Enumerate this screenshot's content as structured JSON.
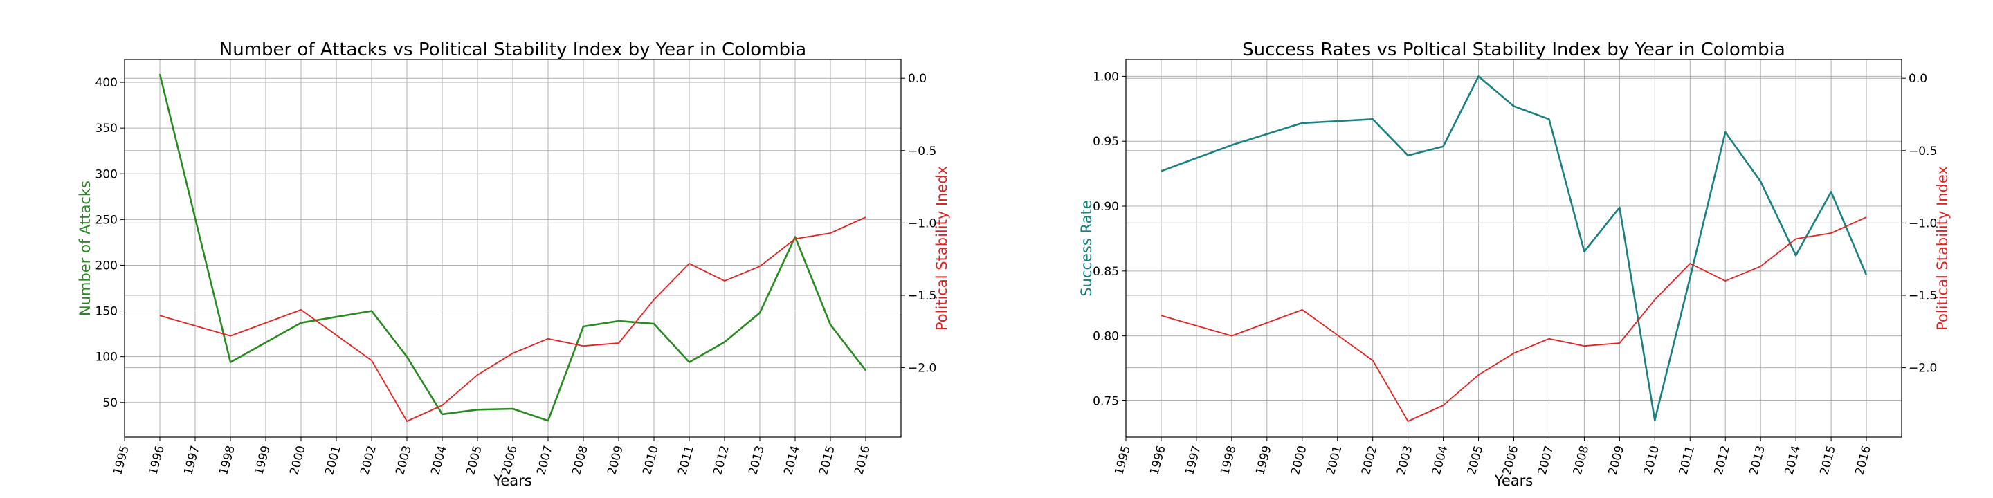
{
  "chart_data": [
    {
      "type": "line",
      "title": "Number of Attacks vs Political Stability Index by Year in Colombia",
      "xlabel": "Years",
      "ylabel": "Number of Attacks",
      "y2label": "Political Stability Inedx",
      "x_ticks": [
        "1995",
        "1996",
        "1997",
        "1998",
        "1999",
        "2000",
        "2001",
        "2002",
        "2003",
        "2004",
        "2005",
        "2006",
        "2007",
        "2008",
        "2009",
        "2010",
        "2011",
        "2012",
        "2013",
        "2014",
        "2015",
        "2016"
      ],
      "xlim": [
        1995,
        2017
      ],
      "ylim": [
        12,
        425
      ],
      "y_ticks": [
        50,
        100,
        150,
        200,
        250,
        300,
        350,
        400
      ],
      "y2lim": [
        -2.48,
        0.13
      ],
      "y2_ticks": [
        "0.0",
        "−0.5",
        "−1.0",
        "−1.5",
        "−2.0"
      ],
      "y2_tick_values": [
        0.0,
        -0.5,
        -1.0,
        -1.5,
        -2.0
      ],
      "grid": true,
      "series": [
        {
          "axis": "left",
          "color": "#2a8a22",
          "x": [
            1996,
            1998,
            2000,
            2002,
            2003,
            2004,
            2005,
            2006,
            2007,
            2008,
            2009,
            2010,
            2011,
            2012,
            2013,
            2014,
            2015,
            2016
          ],
          "values": [
            409,
            94,
            137,
            150,
            100,
            37,
            42,
            43,
            30,
            133,
            139,
            136,
            94,
            116,
            148,
            231,
            135,
            85
          ]
        },
        {
          "axis": "right",
          "color": "#e82020",
          "x": [
            1996,
            1998,
            2000,
            2002,
            2003,
            2004,
            2005,
            2006,
            2007,
            2008,
            2009,
            2010,
            2011,
            2012,
            2013,
            2014,
            2015,
            2016
          ],
          "values": [
            -1.64,
            -1.78,
            -1.6,
            -1.95,
            -2.37,
            -2.26,
            -2.05,
            -1.9,
            -1.8,
            -1.85,
            -1.83,
            -1.53,
            -1.28,
            -1.4,
            -1.3,
            -1.11,
            -1.07,
            -0.96
          ]
        }
      ]
    },
    {
      "type": "line",
      "title": "Success Rates vs Poltical Stability Index by Year in Colombia",
      "xlabel": "Years",
      "ylabel": "Success Rate",
      "y2label": "Political Stability Index",
      "x_ticks": [
        "1995",
        "1996",
        "1997",
        "1998",
        "1999",
        "2000",
        "2001",
        "2002",
        "2003",
        "2004",
        "2005",
        "2006",
        "2007",
        "2008",
        "2009",
        "2010",
        "2011",
        "2012",
        "2013",
        "2014",
        "2015",
        "2016"
      ],
      "xlim": [
        1995,
        2017
      ],
      "ylim": [
        0.722,
        1.013
      ],
      "y_ticks": [
        "0.75",
        "0.80",
        "0.85",
        "0.90",
        "0.95",
        "1.00"
      ],
      "y_tick_values": [
        0.75,
        0.8,
        0.85,
        0.9,
        0.95,
        1.0
      ],
      "y2lim": [
        -2.48,
        0.13
      ],
      "y2_ticks": [
        "0.0",
        "−0.5",
        "−1.0",
        "−1.5",
        "−2.0"
      ],
      "y2_tick_values": [
        0.0,
        -0.5,
        -1.0,
        -1.5,
        -2.0
      ],
      "grid": true,
      "series": [
        {
          "axis": "left",
          "color": "#1a8080",
          "x": [
            1996,
            1998,
            2000,
            2002,
            2003,
            2004,
            2005,
            2006,
            2007,
            2008,
            2009,
            2010,
            2011,
            2012,
            2013,
            2014,
            2015,
            2016
          ],
          "values": [
            0.927,
            0.947,
            0.964,
            0.967,
            0.939,
            0.946,
            1.0,
            0.977,
            0.967,
            0.865,
            0.899,
            0.735,
            0.845,
            0.957,
            0.919,
            0.862,
            0.911,
            0.847
          ]
        },
        {
          "axis": "right",
          "color": "#e82020",
          "x": [
            1996,
            1998,
            2000,
            2002,
            2003,
            2004,
            2005,
            2006,
            2007,
            2008,
            2009,
            2010,
            2011,
            2012,
            2013,
            2014,
            2015,
            2016
          ],
          "values": [
            -1.64,
            -1.78,
            -1.6,
            -1.95,
            -2.37,
            -2.26,
            -2.05,
            -1.9,
            -1.8,
            -1.85,
            -1.83,
            -1.53,
            -1.28,
            -1.4,
            -1.3,
            -1.11,
            -1.07,
            -0.96
          ]
        }
      ]
    }
  ]
}
